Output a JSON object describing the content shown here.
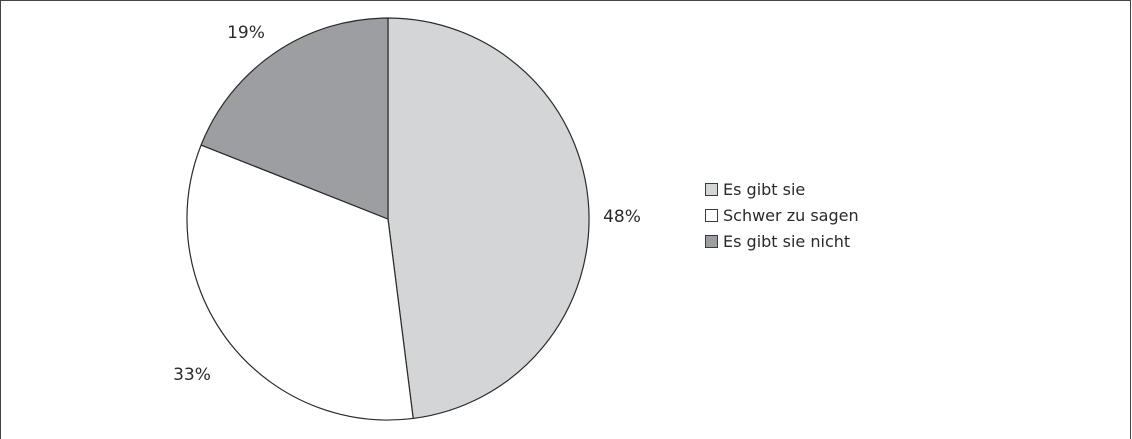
{
  "chart_data": {
    "type": "pie",
    "slices": [
      {
        "label": "Es gibt sie",
        "value": 48,
        "value_label": "48%",
        "color": "#d4d5d7"
      },
      {
        "label": "Schwer zu sagen",
        "value": 33,
        "value_label": "33%",
        "color": "#ffffff"
      },
      {
        "label": "Es gibt sie nicht",
        "value": 19,
        "value_label": "19%",
        "color": "#9d9ea1"
      }
    ],
    "legend_placement": "right",
    "start": "top",
    "direction": "clockwise"
  }
}
